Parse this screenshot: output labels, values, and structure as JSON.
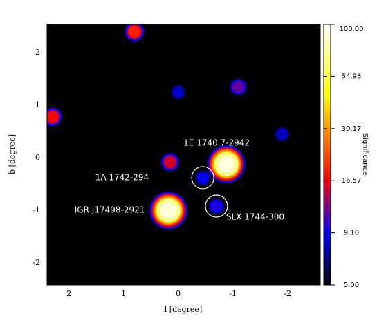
{
  "chart_data": {
    "type": "skymap",
    "xlabel": "l [degree]",
    "ylabel": "b [degree]",
    "colorbar_label": "Significance",
    "xlim": [
      2.4,
      -2.6
    ],
    "ylim": [
      -2.42,
      2.54
    ],
    "xticks": [
      2,
      1,
      0,
      -1,
      -2
    ],
    "yticks": [
      -2,
      -1,
      0,
      1,
      2
    ],
    "background": "#000000",
    "clim": [
      5,
      100
    ],
    "colorbar_scale": "log",
    "colorbar_ticks": [
      {
        "value": 5,
        "label": "5.00"
      },
      {
        "value": 9.1,
        "label": "9.10"
      },
      {
        "value": 16.57,
        "label": "16.57"
      },
      {
        "value": 30.17,
        "label": "30.17"
      },
      {
        "value": 54.93,
        "label": "54.93"
      },
      {
        "value": 100,
        "label": "100.00"
      }
    ],
    "colormap": [
      [
        5,
        "#000000"
      ],
      [
        9.1,
        "#0000ff"
      ],
      [
        17,
        "#ff0000"
      ],
      [
        45,
        "#ffff00"
      ],
      [
        100,
        "#ffffff"
      ]
    ],
    "circle_color": "#ffffff",
    "sources": [
      {
        "l": 0.8,
        "b": 2.4,
        "significance": 20
      },
      {
        "l": 0.0,
        "b": 1.25,
        "significance": 8
      },
      {
        "l": -1.1,
        "b": 1.35,
        "significance": 12
      },
      {
        "l": 2.3,
        "b": 0.78,
        "significance": 18
      },
      {
        "l": -1.9,
        "b": 0.45,
        "significance": 8
      },
      {
        "l": 0.15,
        "b": -0.08,
        "significance": 16
      },
      {
        "l": -0.88,
        "b": -0.12,
        "significance": 100,
        "name": "1E 1740.7-2942",
        "circled": true
      },
      {
        "l": -0.45,
        "b": -0.38,
        "significance": 9,
        "name": "1A 1742-294",
        "circled": true
      },
      {
        "l": 0.18,
        "b": -1.0,
        "significance": 100,
        "name": "IGR J17498-2921",
        "circled": true
      },
      {
        "l": -0.7,
        "b": -0.92,
        "significance": 10,
        "name": "SLX 1744-300",
        "circled": true
      }
    ]
  }
}
